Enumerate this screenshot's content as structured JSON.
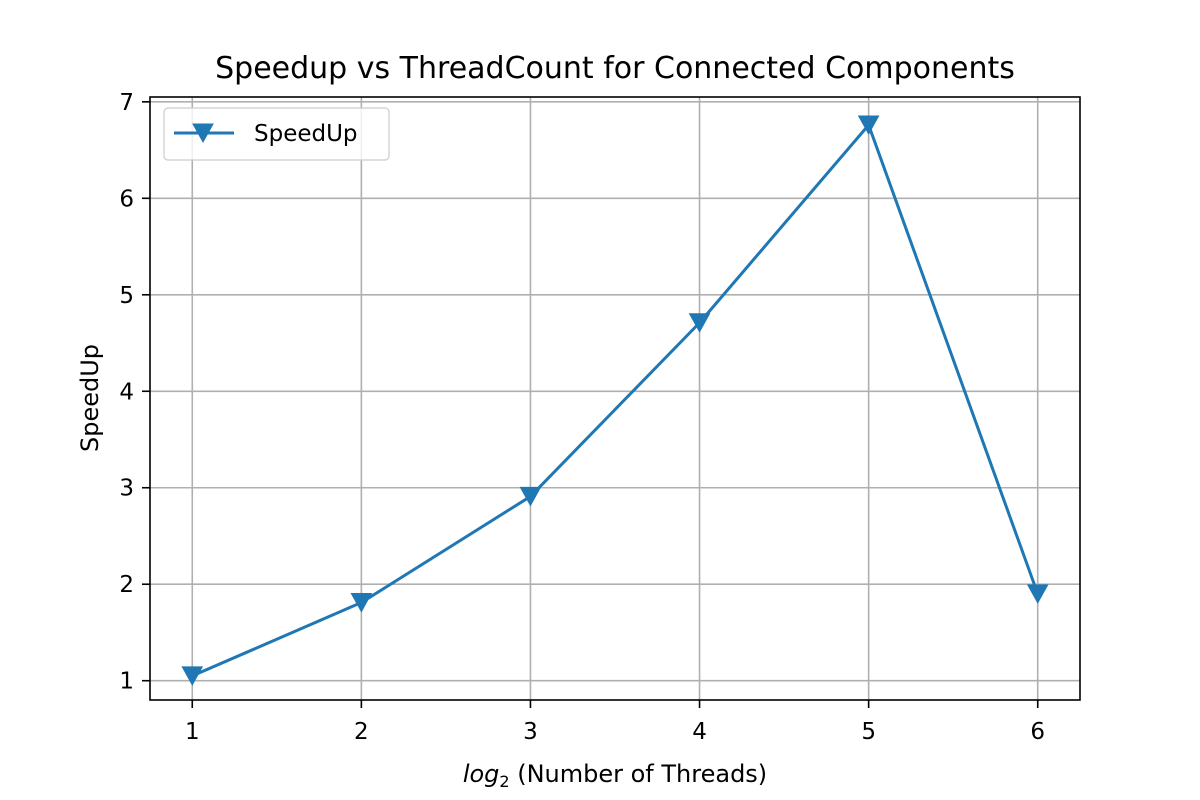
{
  "chart_data": {
    "type": "line",
    "title": "Speedup vs ThreadCount for Connected Components",
    "xlabel_main": "log",
    "xlabel_sub": "2",
    "xlabel_rest": " (Number of Threads)",
    "ylabel": "SpeedUp",
    "x": [
      1,
      2,
      3,
      4,
      5,
      6
    ],
    "series": [
      {
        "name": "SpeedUp",
        "values": [
          1.05,
          1.81,
          2.91,
          4.71,
          6.76,
          1.9
        ]
      }
    ],
    "xticks": [
      "1",
      "2",
      "3",
      "4",
      "5",
      "6"
    ],
    "yticks": [
      "1",
      "2",
      "3",
      "4",
      "5",
      "6",
      "7"
    ],
    "xlim": [
      0.75,
      6.25
    ],
    "ylim": [
      0.8,
      7.05
    ],
    "grid": true,
    "legend_position": "top-left",
    "line_color": "#1f77b4",
    "marker": "triangle-down"
  }
}
